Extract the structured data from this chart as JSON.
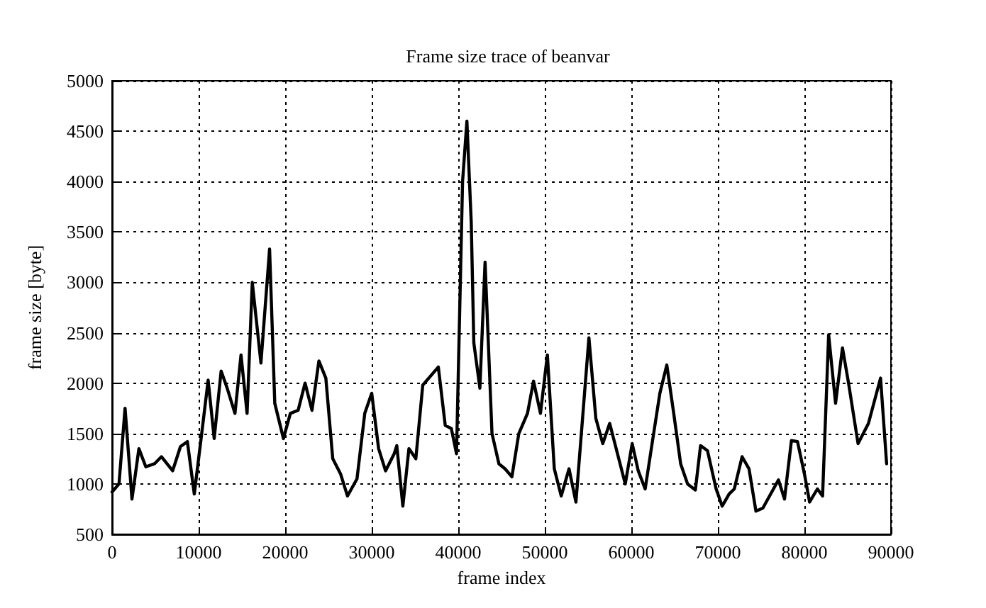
{
  "chart_data": {
    "type": "line",
    "title": "Frame size trace of beanvar",
    "xlabel": "frame index",
    "ylabel": "frame size [byte]",
    "x": [
      0,
      800,
      1500,
      2300,
      3100,
      3900,
      4900,
      5700,
      7000,
      7900,
      8700,
      9500,
      10500,
      11100,
      11800,
      12600,
      13300,
      14200,
      14900,
      15600,
      16200,
      17200,
      18200,
      18800,
      19800,
      20600,
      21500,
      22300,
      23100,
      23900,
      24700,
      25500,
      26400,
      27200,
      28300,
      29200,
      30000,
      30800,
      31600,
      32600,
      32900,
      33600,
      34300,
      35100,
      35900,
      37700,
      38500,
      39200,
      39800,
      40500,
      41000,
      41500,
      41800,
      42500,
      43100,
      43900,
      44700,
      45400,
      46200,
      47000,
      48000,
      48700,
      49500,
      50300,
      51100,
      51900,
      52800,
      53600,
      55100,
      55900,
      56700,
      57500,
      58700,
      59300,
      60100,
      60800,
      61600,
      62400,
      63300,
      64100,
      64900,
      65700,
      66500,
      67400,
      68000,
      68800,
      69800,
      70500,
      71300,
      71900,
      72800,
      73600,
      74400,
      75200,
      77000,
      77700,
      78500,
      79200,
      80000,
      80600,
      81500,
      82100,
      82800,
      83600,
      84400,
      85100,
      86200,
      87400,
      88800,
      89500
    ],
    "series": [
      {
        "color": "#000000",
        "values": [
          920,
          1000,
          1750,
          850,
          1350,
          1170,
          1200,
          1270,
          1130,
          1370,
          1420,
          900,
          1600,
          2030,
          1450,
          2120,
          1950,
          1700,
          2280,
          1700,
          3000,
          2200,
          3330,
          1800,
          1450,
          1700,
          1730,
          2000,
          1730,
          2220,
          2050,
          1250,
          1100,
          880,
          1050,
          1700,
          1900,
          1350,
          1130,
          1300,
          1380,
          780,
          1350,
          1250,
          1980,
          2160,
          1580,
          1550,
          1300,
          4000,
          4600,
          3600,
          2400,
          1950,
          3200,
          1500,
          1200,
          1150,
          1070,
          1500,
          1700,
          2020,
          1700,
          2280,
          1150,
          880,
          1150,
          820,
          2450,
          1650,
          1400,
          1600,
          1200,
          1000,
          1400,
          1130,
          950,
          1400,
          1900,
          2180,
          1700,
          1200,
          1000,
          940,
          1380,
          1330,
          950,
          780,
          900,
          950,
          1270,
          1150,
          730,
          760,
          1040,
          850,
          1430,
          1420,
          1100,
          820,
          950,
          880,
          2480,
          1800,
          2350,
          2000,
          1400,
          1600,
          2050,
          1200
        ]
      }
    ],
    "xlim": [
      0,
      90000
    ],
    "xticks": [
      0,
      10000,
      20000,
      30000,
      40000,
      50000,
      60000,
      70000,
      80000,
      90000
    ],
    "ylim": [
      500,
      5000
    ],
    "yticks": [
      500,
      1000,
      1500,
      2000,
      2500,
      3000,
      3500,
      4000,
      4500,
      5000
    ],
    "grid": true,
    "marker": "none",
    "line_style": "solid"
  }
}
